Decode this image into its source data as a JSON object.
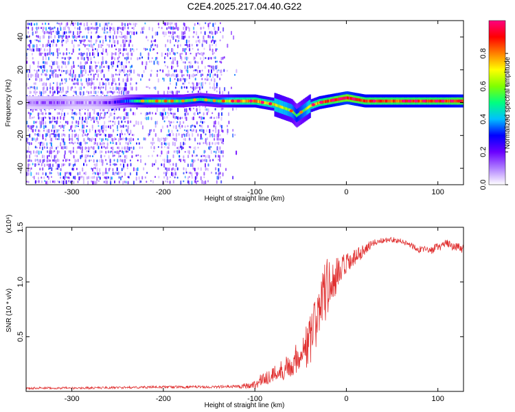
{
  "title": "C2E4.2025.217.04.40.G22",
  "colors": {
    "colormap": [
      "#ffffff",
      "#b080ff",
      "#6a00ff",
      "#0000ff",
      "#00c0ff",
      "#00ff80",
      "#80ff00",
      "#ffff00",
      "#ff8000",
      "#ff0000",
      "#ff0080"
    ],
    "snr_line": "#e03030",
    "axis": "#000000"
  },
  "chart_data": [
    {
      "type": "heatmap",
      "xlabel": "Height of straight line (km)",
      "ylabel": "Frequency (Hz)",
      "xlim": [
        -350,
        128
      ],
      "ylim": [
        -50,
        50
      ],
      "xticks": [
        -300,
        -200,
        -100,
        0,
        100
      ],
      "yticks": [
        -40,
        -20,
        0,
        20,
        40
      ],
      "colorbar": {
        "label": "Normalized spectral amplitude",
        "range": [
          0,
          1
        ],
        "ticks": [
          "0.0",
          "0.2",
          "0.4",
          "0.6",
          "0.8"
        ]
      },
      "ridge": {
        "x": [
          -350,
          -320,
          -300,
          -280,
          -260,
          -240,
          -220,
          -200,
          -180,
          -160,
          -140,
          -120,
          -100,
          -90,
          -80,
          -70,
          -60,
          -55,
          -50,
          -45,
          -40,
          -30,
          -20,
          -10,
          0,
          10,
          20,
          40,
          60,
          80,
          100,
          128
        ],
        "y": [
          0,
          0,
          0,
          0,
          0,
          1,
          1,
          1,
          1,
          2,
          1,
          1,
          1,
          0,
          -1,
          -3,
          -5,
          -8,
          -6,
          -4,
          -2,
          0,
          1,
          2,
          3,
          2,
          1,
          1,
          1,
          1,
          1,
          1
        ],
        "strength": [
          0.1,
          0.15,
          0.1,
          0.1,
          0.15,
          0.35,
          0.55,
          0.6,
          0.55,
          0.5,
          0.55,
          0.75,
          0.8,
          0.75,
          0.7,
          0.65,
          0.6,
          0.5,
          0.55,
          0.6,
          0.7,
          0.8,
          0.85,
          0.9,
          0.95,
          0.9,
          0.85,
          0.85,
          0.85,
          0.85,
          0.85,
          0.9
        ]
      }
    },
    {
      "type": "line",
      "xlabel": "Height of straight line (km)",
      "ylabel": "SNR (10 * v/v)",
      "exponent_label": "(x10⁴)",
      "xlim": [
        -350,
        128
      ],
      "ylim": [
        0,
        1.5
      ],
      "xticks": [
        -300,
        -200,
        -100,
        0,
        100
      ],
      "yticks": [
        "0.5",
        "1.0",
        "1.5"
      ],
      "series": [
        {
          "x": [
            -350,
            -300,
            -250,
            -200,
            -150,
            -120,
            -100,
            -90,
            -80,
            -70,
            -60,
            -50,
            -45,
            -40,
            -35,
            -30,
            -25,
            -20,
            -15,
            -10,
            -5,
            0,
            10,
            20,
            30,
            40,
            50,
            60,
            70,
            80,
            90,
            100,
            110,
            120,
            128
          ],
          "y": [
            0.03,
            0.03,
            0.035,
            0.04,
            0.04,
            0.045,
            0.06,
            0.12,
            0.15,
            0.2,
            0.25,
            0.35,
            0.4,
            0.45,
            0.55,
            0.8,
            0.9,
            0.95,
            1.0,
            1.05,
            1.1,
            1.15,
            1.22,
            1.3,
            1.36,
            1.38,
            1.39,
            1.37,
            1.34,
            1.3,
            1.28,
            1.32,
            1.35,
            1.32,
            1.3
          ],
          "noise": [
            0.01,
            0.01,
            0.01,
            0.012,
            0.012,
            0.015,
            0.04,
            0.07,
            0.08,
            0.1,
            0.12,
            0.15,
            0.2,
            0.25,
            0.3,
            0.32,
            0.3,
            0.28,
            0.22,
            0.18,
            0.15,
            0.12,
            0.08,
            0.05,
            0.03,
            0.025,
            0.025,
            0.025,
            0.03,
            0.035,
            0.04,
            0.04,
            0.04,
            0.04,
            0.04
          ]
        }
      ]
    }
  ]
}
